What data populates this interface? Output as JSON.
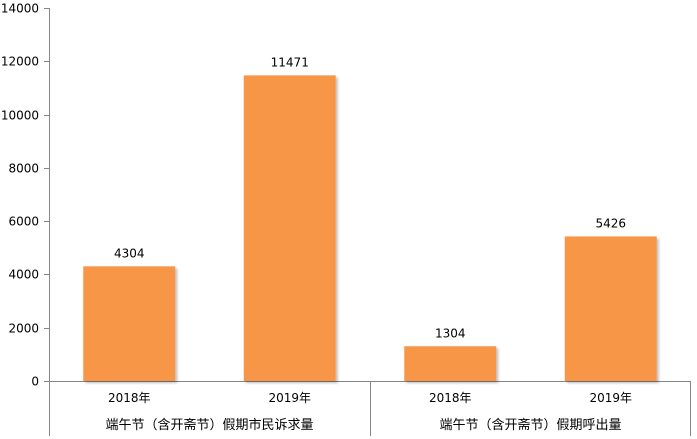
{
  "chart_data": {
    "type": "bar",
    "title": "",
    "xlabel": "",
    "ylabel": "",
    "ylim": [
      0,
      14000
    ],
    "yticks": [
      0,
      2000,
      4000,
      6000,
      8000,
      10000,
      12000,
      14000
    ],
    "grid": false,
    "legend": "none",
    "bar_color": "#F79646",
    "groups": [
      {
        "name": "端午节（含开斋节）假期市民诉求量",
        "categories": [
          "2018年",
          "2019年"
        ],
        "values": [
          4304,
          11471
        ]
      },
      {
        "name": "端午节（含开斋节）假期呼出量",
        "categories": [
          "2018年",
          "2019年"
        ],
        "values": [
          1304,
          5426
        ]
      }
    ]
  }
}
